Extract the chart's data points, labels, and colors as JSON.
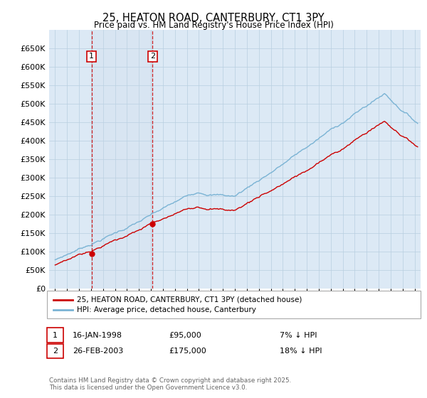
{
  "title": "25, HEATON ROAD, CANTERBURY, CT1 3PY",
  "subtitle": "Price paid vs. HM Land Registry's House Price Index (HPI)",
  "ylim": [
    0,
    700000
  ],
  "yticks": [
    0,
    50000,
    100000,
    150000,
    200000,
    250000,
    300000,
    350000,
    400000,
    450000,
    500000,
    550000,
    600000,
    650000
  ],
  "sale1_label": "16-JAN-1998",
  "sale1_price": 95000,
  "sale1_pct": "7% ↓ HPI",
  "sale1_t": 1998.042,
  "sale2_label": "26-FEB-2003",
  "sale2_price": 175000,
  "sale2_pct": "18% ↓ HPI",
  "sale2_t": 2003.125,
  "hpi_color": "#7ab3d4",
  "paid_color": "#cc0000",
  "background_color": "#ffffff",
  "plot_bg_color": "#dce9f5",
  "grid_color": "#b8cfe0",
  "footnote": "Contains HM Land Registry data © Crown copyright and database right 2025.\nThis data is licensed under the Open Government Licence v3.0.",
  "legend_paid": "25, HEATON ROAD, CANTERBURY, CT1 3PY (detached house)",
  "legend_hpi": "HPI: Average price, detached house, Canterbury",
  "xmin": 1995.0,
  "xmax": 2025.5
}
